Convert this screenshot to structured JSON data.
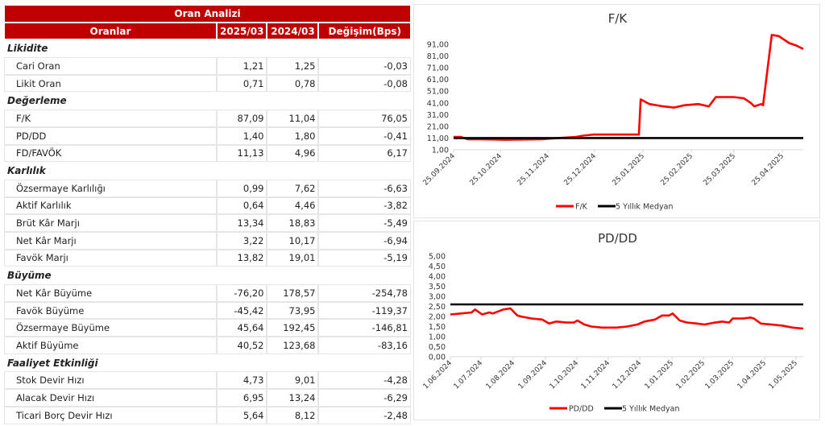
{
  "table": {
    "title": "Oran Analizi",
    "columns": [
      "Oranlar",
      "2025/03",
      "2024/03",
      "Değişim(Bps)"
    ],
    "sections": [
      {
        "name": "Likidite",
        "rows": [
          [
            "Cari Oran",
            "1,21",
            "1,25",
            "-0,03"
          ],
          [
            "Likit Oran",
            "0,71",
            "0,78",
            "-0,08"
          ]
        ]
      },
      {
        "name": "Değerleme",
        "rows": [
          [
            "F/K",
            "87,09",
            "11,04",
            "76,05"
          ],
          [
            "PD/DD",
            "1,40",
            "1,80",
            "-0,41"
          ],
          [
            "FD/FAVÖK",
            "11,13",
            "4,96",
            "6,17"
          ]
        ]
      },
      {
        "name": "Karlılık",
        "rows": [
          [
            "Özsermaye Karlılığı",
            "0,99",
            "7,62",
            "-6,63"
          ],
          [
            "Aktif Karlılık",
            "0,64",
            "4,46",
            "-3,82"
          ],
          [
            "Brüt Kâr Marjı",
            "13,34",
            "18,83",
            "-5,49"
          ],
          [
            "Net Kâr Marjı",
            "3,22",
            "10,17",
            "-6,94"
          ],
          [
            "Favök Marjı",
            "13,82",
            "19,01",
            "-5,19"
          ]
        ]
      },
      {
        "name": "Büyüme",
        "rows": [
          [
            "Net Kâr Büyüme",
            "-76,20",
            "178,57",
            "-254,78"
          ],
          [
            "Favök Büyüme",
            "-45,42",
            "73,95",
            "-119,37"
          ],
          [
            "Özsermaye Büyüme",
            "45,64",
            "192,45",
            "-146,81"
          ],
          [
            "Aktif Büyüme",
            "40,52",
            "123,68",
            "-83,16"
          ]
        ]
      },
      {
        "name": "Faaliyet Etkinliği",
        "rows": [
          [
            "Stok Devir Hızı",
            "4,73",
            "9,01",
            "-4,28"
          ],
          [
            "Alacak Devir Hızı",
            "6,95",
            "13,24",
            "-6,29"
          ],
          [
            "Ticari Borç Devir Hızı",
            "5,64",
            "8,12",
            "-2,48"
          ]
        ]
      }
    ]
  },
  "colors": {
    "header_bg": "#c00000",
    "series": "#ff0000",
    "median": "#000000"
  },
  "chart_data": [
    {
      "type": "line",
      "title": "F/K",
      "xlabel": "",
      "ylabel": "",
      "ylim": [
        1,
        91
      ],
      "yticks": [
        "91,00",
        "81,00",
        "71,00",
        "61,00",
        "51,00",
        "41,00",
        "31,00",
        "21,00",
        "11,00",
        "1,00"
      ],
      "xticks": [
        "25.09.2024",
        "25.10.2024",
        "25.11.2024",
        "25.12.2024",
        "25.01.2025",
        "25.02.2025",
        "25.03.2025",
        "25.04.2025"
      ],
      "legend": [
        "F/K",
        "5 Yıllık Medyan"
      ],
      "legend_position": "bottom",
      "grid": false,
      "x": [
        0,
        0.02,
        0.04,
        0.08,
        0.15,
        0.25,
        0.3,
        0.35,
        0.37,
        0.4,
        0.45,
        0.47,
        0.5,
        0.53,
        0.535,
        0.56,
        0.6,
        0.63,
        0.66,
        0.7,
        0.73,
        0.75,
        0.8,
        0.83,
        0.85,
        0.86,
        0.88,
        0.885,
        0.91,
        0.93,
        0.96,
        0.98,
        1.0
      ],
      "series": [
        {
          "name": "F/K",
          "values": [
            12,
            12,
            10,
            10,
            9.5,
            10,
            11,
            12,
            13,
            14,
            14,
            14,
            14,
            14,
            44,
            40,
            38,
            37,
            39,
            40,
            38,
            46,
            46,
            45,
            41,
            38,
            40,
            39,
            99,
            98,
            92,
            90,
            87
          ]
        },
        {
          "name": "5 Yıllık Medyan",
          "values": [
            11,
            11,
            11,
            11,
            11,
            11,
            11,
            11,
            11,
            11,
            11,
            11,
            11,
            11,
            11,
            11,
            11,
            11,
            11,
            11,
            11,
            11,
            11,
            11,
            11,
            11,
            11,
            11,
            11,
            11,
            11,
            11,
            11
          ]
        }
      ]
    },
    {
      "type": "line",
      "title": "PD/DD",
      "xlabel": "",
      "ylabel": "",
      "ylim": [
        0,
        5
      ],
      "yticks": [
        "5,00",
        "4,50",
        "4,00",
        "3,50",
        "3,00",
        "2,50",
        "2,00",
        "1,50",
        "1,00",
        "0,50",
        "0,00"
      ],
      "xticks": [
        "1.06.2024",
        "1.07.2024",
        "1.08.2024",
        "1.09.2024",
        "1.10.2024",
        "1.11.2024",
        "1.12.2024",
        "1.01.2025",
        "1.02.2025",
        "1.03.2025",
        "1.04.2025",
        "1.05.2025"
      ],
      "legend": [
        "PD/DD",
        "5 Yıllık Medyan"
      ],
      "legend_position": "bottom",
      "grid": false,
      "x": [
        0,
        0.03,
        0.06,
        0.07,
        0.09,
        0.11,
        0.12,
        0.15,
        0.17,
        0.19,
        0.2,
        0.23,
        0.26,
        0.28,
        0.3,
        0.33,
        0.35,
        0.36,
        0.38,
        0.4,
        0.43,
        0.47,
        0.5,
        0.53,
        0.55,
        0.58,
        0.6,
        0.62,
        0.63,
        0.65,
        0.67,
        0.7,
        0.72,
        0.75,
        0.77,
        0.79,
        0.8,
        0.83,
        0.85,
        0.86,
        0.88,
        0.91,
        0.94,
        0.97,
        1.0
      ],
      "series": [
        {
          "name": "PD/DD",
          "values": [
            2.1,
            2.15,
            2.2,
            2.35,
            2.1,
            2.2,
            2.15,
            2.35,
            2.4,
            2.05,
            2.0,
            1.9,
            1.85,
            1.65,
            1.75,
            1.7,
            1.7,
            1.8,
            1.6,
            1.5,
            1.45,
            1.45,
            1.5,
            1.6,
            1.75,
            1.85,
            2.05,
            2.05,
            2.15,
            1.8,
            1.7,
            1.65,
            1.6,
            1.7,
            1.75,
            1.7,
            1.9,
            1.9,
            1.95,
            1.9,
            1.65,
            1.6,
            1.55,
            1.45,
            1.4
          ]
        },
        {
          "name": "5 Yıllık Medyan",
          "values": [
            2.6,
            2.6,
            2.6,
            2.6,
            2.6,
            2.6,
            2.6,
            2.6,
            2.6,
            2.6,
            2.6,
            2.6,
            2.6,
            2.6,
            2.6,
            2.6,
            2.6,
            2.6,
            2.6,
            2.6,
            2.6,
            2.6,
            2.6,
            2.6,
            2.6,
            2.6,
            2.6,
            2.6,
            2.6,
            2.6,
            2.6,
            2.6,
            2.6,
            2.6,
            2.6,
            2.6,
            2.6,
            2.6,
            2.6,
            2.6,
            2.6,
            2.6,
            2.6,
            2.6,
            2.6
          ]
        }
      ]
    }
  ]
}
